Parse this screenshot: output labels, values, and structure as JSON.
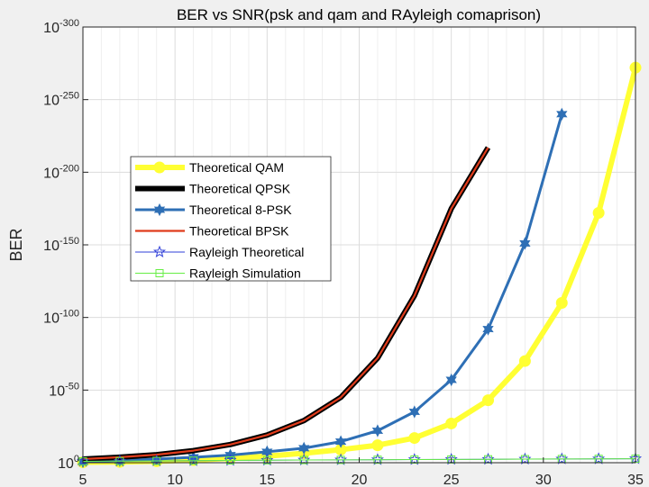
{
  "chart_data": {
    "type": "line",
    "title": "BER vs SNR(psk and qam and RAyleigh comaprison)",
    "xlabel": "",
    "ylabel": "BER",
    "xlim": [
      5,
      35
    ],
    "ylim_exponent": [
      -300,
      0
    ],
    "yscale": "log",
    "grid": true,
    "legend_position": "upper-left-center",
    "x_ticks": [
      5,
      10,
      15,
      20,
      25,
      30,
      35
    ],
    "y_tick_exponents": [
      0,
      -50,
      -100,
      -150,
      -200,
      -250,
      -300
    ],
    "y_tick_base": "10",
    "series": [
      {
        "name": "Theoretical QAM",
        "color": "#ffff33",
        "marker": "circle",
        "x": [
          5,
          7,
          9,
          11,
          13,
          15,
          17,
          19,
          21,
          23,
          25,
          27,
          29,
          31,
          33,
          35
        ],
        "log10_y": [
          -0.3,
          -0.5,
          -1.0,
          -1.8,
          -3.0,
          -4.5,
          -6.5,
          -9.0,
          -12,
          -17,
          -27,
          -43,
          -70,
          -110,
          -172,
          -272
        ]
      },
      {
        "name": "Theoretical QPSK",
        "color": "#000000",
        "marker": "none",
        "x": [
          5,
          7,
          9,
          11,
          13,
          15,
          17,
          19,
          21,
          23,
          25,
          27
        ],
        "log10_y": [
          -2.5,
          -3.8,
          -5.5,
          -8.3,
          -12.5,
          -19,
          -29,
          -45,
          -72,
          -115,
          -175,
          -217
        ]
      },
      {
        "name": "Theoretical 8-PSK",
        "color": "#2e6fb5",
        "marker": "hexagram",
        "x": [
          5,
          7,
          9,
          11,
          13,
          15,
          17,
          19,
          21,
          23,
          25,
          27,
          29,
          31
        ],
        "log10_y": [
          -0.7,
          -1.5,
          -2.5,
          -3.7,
          -5.2,
          -7.5,
          -10,
          -14.5,
          -22,
          -35,
          -57,
          -92,
          -151,
          -240
        ]
      },
      {
        "name": "Theoretical BPSK",
        "color": "#e03c1c",
        "marker": "none",
        "x": [
          5,
          7,
          9,
          11,
          13,
          15,
          17,
          19,
          21,
          23,
          25,
          27
        ],
        "log10_y": [
          -2.5,
          -3.8,
          -5.5,
          -8.3,
          -12.5,
          -19,
          -29,
          -45,
          -72,
          -115,
          -175,
          -217
        ]
      },
      {
        "name": "Rayleigh Theoretical",
        "color": "#2f3fd8",
        "marker": "pentagram",
        "x": [
          5,
          7,
          9,
          11,
          13,
          15,
          17,
          19,
          21,
          23,
          25,
          27,
          29,
          31,
          33,
          35
        ],
        "log10_y": [
          -0.95,
          -1.1,
          -1.25,
          -1.4,
          -1.55,
          -1.7,
          -1.85,
          -1.95,
          -2.05,
          -2.15,
          -2.25,
          -2.35,
          -2.45,
          -2.55,
          -2.65,
          -2.75
        ]
      },
      {
        "name": "Rayleigh Simulation",
        "color": "#66ee44",
        "marker": "square",
        "x": [
          5,
          7,
          9,
          11,
          13,
          15,
          17,
          19,
          21,
          23,
          25,
          27,
          29,
          31,
          33,
          35
        ],
        "log10_y": [
          -0.95,
          -1.1,
          -1.25,
          -1.4,
          -1.55,
          -1.7,
          -1.85,
          -1.95,
          -2.05,
          -2.15,
          -2.25,
          -2.35,
          -2.45,
          -2.55,
          -2.65,
          -2.75
        ]
      }
    ]
  }
}
